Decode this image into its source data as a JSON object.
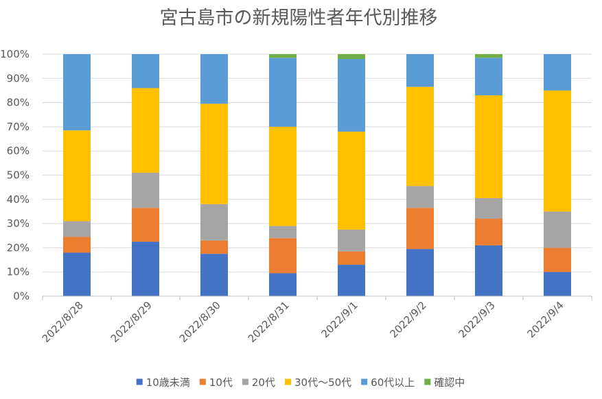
{
  "chart_data": {
    "type": "bar",
    "stacked": true,
    "normalized": true,
    "title": "宮古島市の新規陽性者年代別推移",
    "xlabel": "",
    "ylabel": "",
    "ylim": [
      0,
      100
    ],
    "yticks": [
      0,
      10,
      20,
      30,
      40,
      50,
      60,
      70,
      80,
      90,
      100
    ],
    "ytick_labels": [
      "0%",
      "10%",
      "20%",
      "30%",
      "40%",
      "50%",
      "60%",
      "70%",
      "80%",
      "90%",
      "100%"
    ],
    "grid": true,
    "legend": "bottom",
    "categories": [
      "2022/8/28",
      "2022/8/29",
      "2022/8/30",
      "2022/8/31",
      "2022/9/1",
      "2022/9/2",
      "2022/9/3",
      "2022/9/4"
    ],
    "series": [
      {
        "name": "10歳未満",
        "color": "#4472c4",
        "values": [
          18,
          22.5,
          17.5,
          9.5,
          13,
          19.5,
          21,
          10
        ]
      },
      {
        "name": "10代",
        "color": "#ed7d31",
        "values": [
          6.5,
          14,
          5.5,
          14.5,
          5.5,
          17,
          11,
          10
        ]
      },
      {
        "name": "20代",
        "color": "#a5a5a5",
        "values": [
          6.5,
          14.5,
          15,
          5,
          9,
          9,
          8.5,
          15
        ]
      },
      {
        "name": "30代～50代",
        "color": "#ffc000",
        "values": [
          37.5,
          35,
          41.5,
          41,
          40.5,
          41,
          42.5,
          50
        ]
      },
      {
        "name": "60代以上",
        "color": "#5b9bd5",
        "values": [
          31.5,
          14,
          20.5,
          28.5,
          30,
          13.5,
          15.5,
          15
        ]
      },
      {
        "name": "確認中",
        "color": "#70ad47",
        "values": [
          0,
          0,
          0,
          1.5,
          2,
          0,
          1.5,
          0
        ]
      }
    ]
  }
}
